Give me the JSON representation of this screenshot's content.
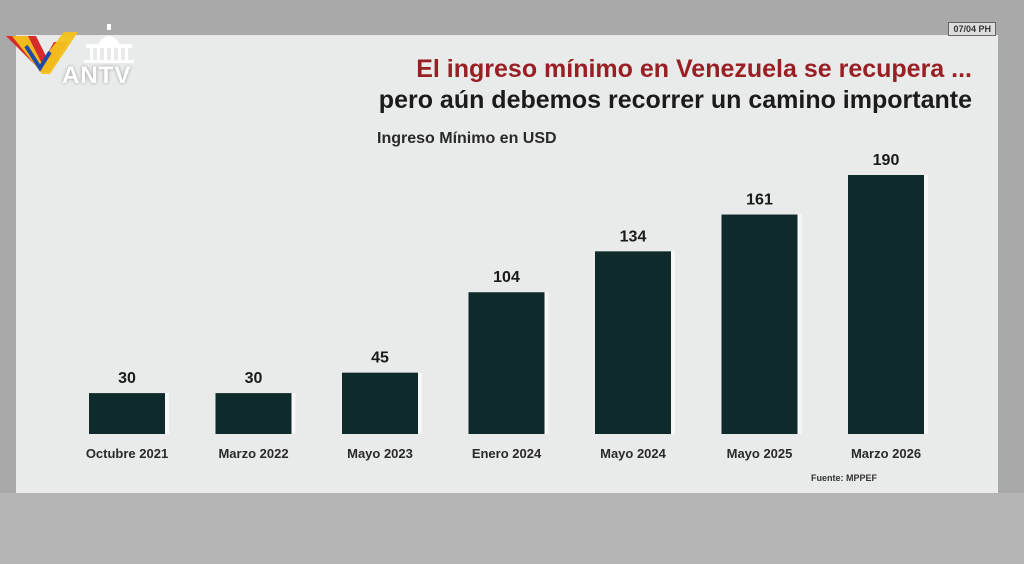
{
  "header": {
    "logo_text": "ANTV",
    "timestamp": "07/04 PH"
  },
  "title_line1": "El ingreso mínimo en Venezuela se recupera ...",
  "title_line2": "pero aún debemos recorrer un camino importante",
  "source": "Fuente: MPPEF",
  "colors": {
    "bar": "#0f2a2b",
    "title_accent": "#9a1f24",
    "panel": "#e9eaea"
  },
  "chart_data": {
    "type": "bar",
    "title": "Ingreso Mínimo en USD",
    "categories": [
      "Octubre 2021",
      "Marzo 2022",
      "Mayo 2023",
      "Enero 2024",
      "Mayo 2024",
      "Mayo 2025",
      "Marzo 2026"
    ],
    "values": [
      30,
      30,
      45,
      104,
      134,
      161,
      190
    ],
    "xlabel": "",
    "ylabel": "",
    "ylim": [
      0,
      190
    ],
    "grid": false,
    "data_labels": true
  }
}
